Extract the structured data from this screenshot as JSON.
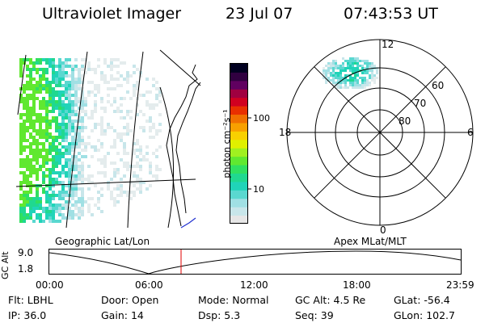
{
  "header": {
    "instrument": "Ultraviolet Imager",
    "date": "23 Jul 07",
    "time": "07:43:53 UT"
  },
  "colorbar": {
    "unit_label": "photon cm⁻²s⁻¹",
    "ticks": [
      "100",
      "10"
    ],
    "colors": [
      "#e6e6e6",
      "#c8e6ea",
      "#a0e0e4",
      "#5ad8d0",
      "#20d4b8",
      "#20d890",
      "#30e060",
      "#60e830",
      "#a0f020",
      "#e0f000",
      "#f8d000",
      "#f8a000",
      "#f07000",
      "#e83000",
      "#d00020",
      "#a00040",
      "#600060",
      "#300040",
      "#000020"
    ]
  },
  "geo_panel": {
    "label": "Geographic Lat/Lon"
  },
  "polar_panel": {
    "label": "Apex MLat/MLT",
    "mlt_labels": {
      "top": "12",
      "bottom": "0",
      "left": "18",
      "right": "6"
    },
    "lat_labels": [
      "60",
      "70",
      "80"
    ]
  },
  "timeline": {
    "ylabel": "GC Alt",
    "yticks": [
      "9.0",
      "1.8"
    ],
    "xticks": [
      "00:00",
      "06:00",
      "12:00",
      "18:00",
      "23:59"
    ],
    "current_marker_color": "#e00000"
  },
  "status": {
    "row1": [
      {
        "label": "Flt:",
        "value": "LBHL"
      },
      {
        "label": "Door:",
        "value": "Open"
      },
      {
        "label": "Mode:",
        "value": "Normal"
      },
      {
        "label": "GC Alt:",
        "value": "4.5 Re"
      },
      {
        "label": "GLat:",
        "value": "-56.4"
      }
    ],
    "row2": [
      {
        "label": "IP:",
        "value": "36.0"
      },
      {
        "label": "Gain:",
        "value": "14"
      },
      {
        "label": "Dsp:",
        "value": "5.3"
      },
      {
        "label": "Seq:",
        "value": "39"
      },
      {
        "label": "GLon:",
        "value": "102.7"
      }
    ]
  }
}
